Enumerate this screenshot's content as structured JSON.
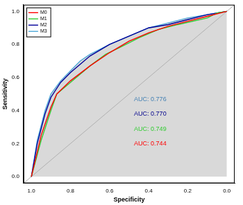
{
  "chart_data": {
    "type": "line",
    "x_label": "Specificity",
    "y_label": "Sensitivity",
    "xlim": [
      1.04,
      -0.04
    ],
    "ylim": [
      -0.04,
      1.04
    ],
    "xticks": [
      {
        "value": 1,
        "label": "1.0"
      },
      0.8,
      0.6,
      0.4,
      0.2,
      {
        "value": 0,
        "label": "0.0"
      }
    ],
    "yticks": [
      {
        "value": 0,
        "label": "0.0"
      },
      0.2,
      0.4,
      0.6,
      0.8,
      {
        "value": 1,
        "label": "1.0"
      }
    ],
    "grid": false,
    "legend": "top-left",
    "series": [
      {
        "name": "M0",
        "color": "#ff0000",
        "x": [
          1,
          0.95,
          0.9,
          0.87,
          0.8,
          0.7,
          0.6,
          0.5,
          0.4,
          0.3,
          0.2,
          0.1,
          0
        ],
        "values": [
          0,
          0.25,
          0.42,
          0.5,
          0.58,
          0.67,
          0.75,
          0.82,
          0.87,
          0.91,
          0.94,
          0.97,
          1
        ]
      },
      {
        "name": "M1",
        "color": "#33cc33",
        "x": [
          1,
          0.95,
          0.9,
          0.87,
          0.8,
          0.7,
          0.62,
          0.55,
          0.45,
          0.35,
          0.25,
          0.1,
          0.05,
          0
        ],
        "values": [
          0,
          0.22,
          0.4,
          0.5,
          0.57,
          0.67,
          0.74,
          0.78,
          0.84,
          0.89,
          0.92,
          0.96,
          0.99,
          1
        ]
      },
      {
        "name": "M2",
        "color": "#000099",
        "x": [
          1,
          0.97,
          0.93,
          0.9,
          0.85,
          0.8,
          0.75,
          0.7,
          0.6,
          0.5,
          0.4,
          0.3,
          0.2,
          0.1,
          0
        ],
        "values": [
          0,
          0.2,
          0.38,
          0.48,
          0.57,
          0.63,
          0.68,
          0.73,
          0.8,
          0.85,
          0.9,
          0.92,
          0.95,
          0.98,
          1
        ]
      },
      {
        "name": "M3",
        "color": "#4fa8d8",
        "x": [
          1,
          0.97,
          0.93,
          0.9,
          0.85,
          0.8,
          0.75,
          0.7,
          0.6,
          0.5,
          0.4,
          0.3,
          0.2,
          0.1,
          0
        ],
        "values": [
          0,
          0.22,
          0.4,
          0.5,
          0.58,
          0.64,
          0.7,
          0.74,
          0.8,
          0.85,
          0.9,
          0.93,
          0.96,
          0.98,
          1
        ]
      }
    ],
    "annotations": [
      {
        "text": "AUC: 0.776",
        "color": "#4682b4"
      },
      {
        "text": "AUC: 0.770",
        "color": "#00008b"
      },
      {
        "text": "AUC: 0.749",
        "color": "#33cc33"
      },
      {
        "text": "AUC: 0.744",
        "color": "#ff0000"
      }
    ]
  }
}
